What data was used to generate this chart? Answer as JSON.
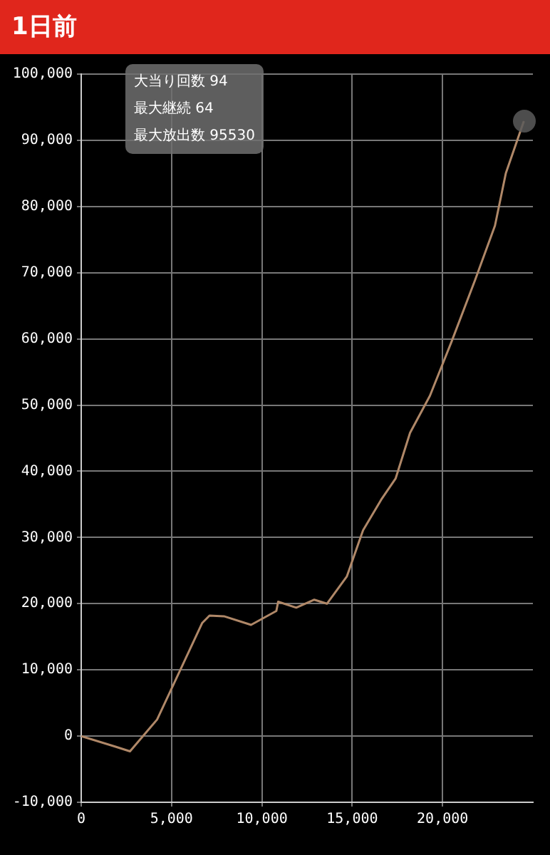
{
  "chart_data": {
    "type": "line",
    "title": "1日前",
    "annotations": [
      "大当り回数 94",
      "最大継続 64",
      "最大放出数 95530"
    ],
    "xlim": [
      0,
      25000
    ],
    "xticks": [
      0,
      {
        "value": 5000,
        "label": "5,000"
      },
      {
        "value": 10000,
        "label": "10,000"
      },
      {
        "value": 15000,
        "label": "15,000"
      },
      {
        "value": 20000,
        "label": "20,000"
      }
    ],
    "ylim": [
      -10000,
      100000
    ],
    "yticks": [
      {
        "value": -10000,
        "label": "-10,000"
      },
      0,
      {
        "value": 10000,
        "label": "10,000"
      },
      {
        "value": 20000,
        "label": "20,000"
      },
      {
        "value": 30000,
        "label": "30,000"
      },
      {
        "value": 40000,
        "label": "40,000"
      },
      {
        "value": 50000,
        "label": "50,000"
      },
      {
        "value": 60000,
        "label": "60,000"
      },
      {
        "value": 70000,
        "label": "70,000"
      },
      {
        "value": 80000,
        "label": "80,000"
      },
      {
        "value": 90000,
        "label": "90,000"
      },
      {
        "value": 100000,
        "label": "100,000"
      }
    ],
    "grid": true,
    "series": [
      {
        "color": "#b08868",
        "x": [
          0,
          1900,
          2700,
          4200,
          6700,
          7100,
          7900,
          9400,
          10800,
          10900,
          11900,
          12900,
          13600,
          14700,
          15600,
          16600,
          17400,
          18200,
          19300,
          20500,
          21800,
          22900,
          23500,
          24500
        ],
        "values": [
          0,
          -1600,
          -2300,
          2500,
          17100,
          18200,
          18100,
          16800,
          18900,
          20300,
          19400,
          20600,
          20000,
          24100,
          31100,
          35700,
          38900,
          45800,
          51400,
          59600,
          68900,
          77100,
          85000,
          92900
        ]
      }
    ]
  }
}
